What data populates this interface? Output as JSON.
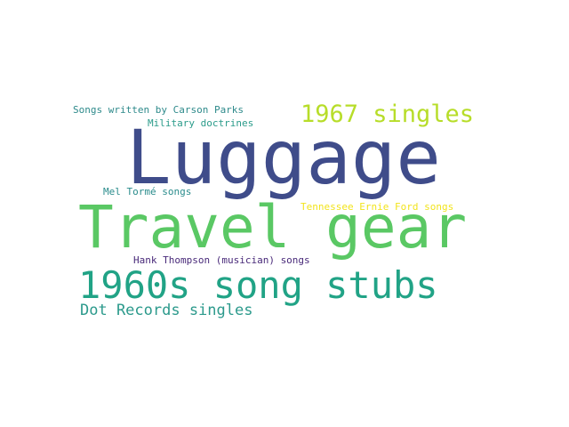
{
  "word_cloud": {
    "background": "#ffffff",
    "words": [
      {
        "text": "Luggage",
        "color": "#3f4c8a"
      },
      {
        "text": "Travel gear",
        "color": "#5ac864"
      },
      {
        "text": "1960s song stubs",
        "color": "#21a386"
      },
      {
        "text": "1967 singles",
        "color": "#b7dd29"
      },
      {
        "text": "Dot Records singles",
        "color": "#2c9a8c"
      },
      {
        "text": "Songs written by Carson Parks",
        "color": "#2e8a8b"
      },
      {
        "text": "Military doctrines",
        "color": "#2a9b8a"
      },
      {
        "text": "Mel Tormé songs",
        "color": "#2a8c8c"
      },
      {
        "text": "Tennessee Ernie Ford songs",
        "color": "#f2e41c"
      },
      {
        "text": "Hank Thompson (musician) songs",
        "color": "#482979"
      }
    ]
  }
}
